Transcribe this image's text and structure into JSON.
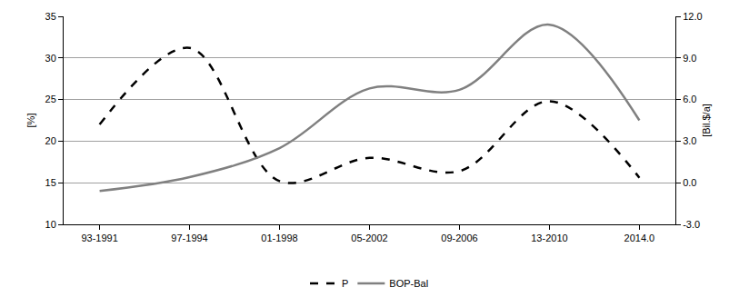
{
  "chart_data": {
    "type": "line",
    "categories": [
      "93-1991",
      "97-1994",
      "01-1998",
      "05-2002",
      "09-2006",
      "13-2010",
      "2014.0"
    ],
    "series": [
      {
        "name": "P",
        "color": "#000000",
        "line_style": "dash",
        "values": [
          22,
          31.2,
          15.2,
          18,
          16.4,
          24.8,
          15.6
        ]
      },
      {
        "name": "BOP-Bal",
        "color": "#808080",
        "line_style": "solid",
        "axis": "y2",
        "values": [
          -0.6,
          0.4,
          2.5,
          6.8,
          6.7,
          11.4,
          4.5
        ]
      }
    ],
    "y_label": "[%]",
    "y2_label": "[Bil.$/a]",
    "ylim": [
      10,
      35
    ],
    "yticks": [
      10,
      15,
      20,
      25,
      30,
      35
    ],
    "y2lim": [
      -3,
      12
    ],
    "y2ticks": [
      {
        "value": -3,
        "label": "-3.0"
      },
      {
        "value": 0,
        "label": "0.0"
      },
      {
        "value": 3,
        "label": "3.0"
      },
      {
        "value": 6,
        "label": "6.0"
      },
      {
        "value": 9,
        "label": "9.0"
      },
      {
        "value": 12,
        "label": "12.0"
      }
    ],
    "grid": true,
    "legend": "bottom"
  }
}
